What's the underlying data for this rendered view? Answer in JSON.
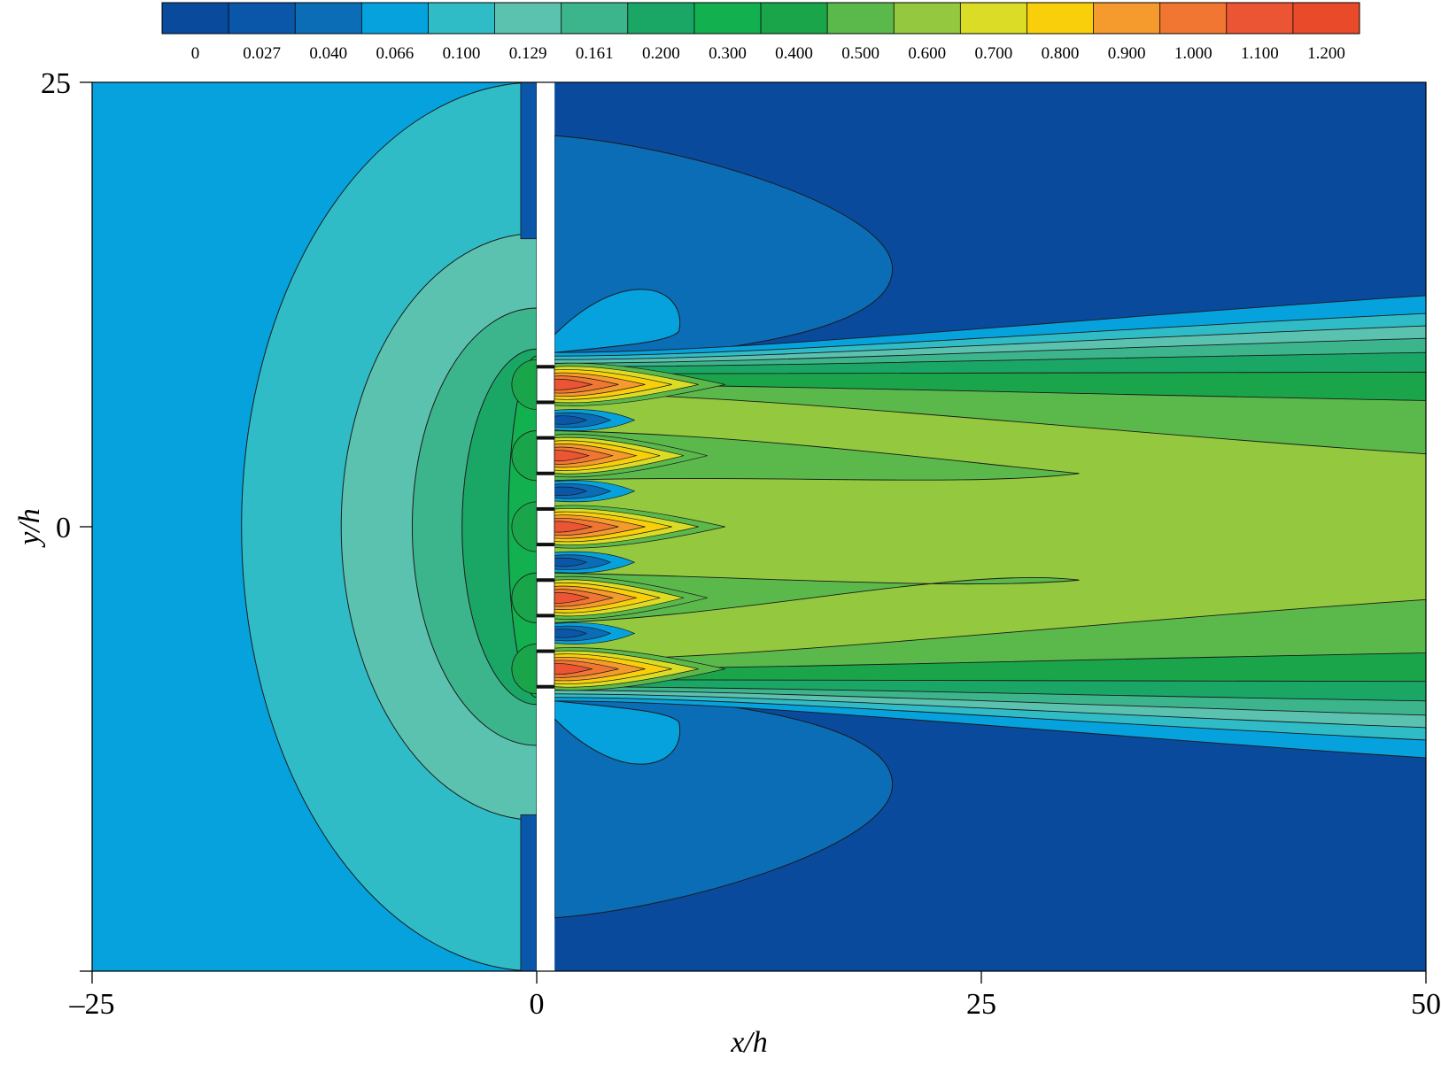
{
  "chart_data": {
    "type": "heatmap",
    "title": "",
    "xlabel": "x/h",
    "ylabel": "y/h",
    "xlim": [
      -25,
      50
    ],
    "ylim": [
      -25,
      25
    ],
    "xticks": [
      {
        "value": -25,
        "label": "–25"
      },
      {
        "value": 0,
        "label": "0"
      },
      {
        "value": 25,
        "label": "25"
      },
      {
        "value": 50,
        "label": "50"
      }
    ],
    "yticks": [
      {
        "value": 25,
        "label": "25"
      },
      {
        "value": 0,
        "label": "0"
      }
    ],
    "legend": "colorbar, top",
    "colorbar": {
      "levels": [
        "0",
        "0.027",
        "0.040",
        "0.066",
        "0.100",
        "0.129",
        "0.161",
        "0.200",
        "0.300",
        "0.400",
        "0.500",
        "0.600",
        "0.700",
        "0.800",
        "0.900",
        "1.000",
        "1.100",
        "1.200"
      ],
      "colors": [
        "#0a4a9c",
        "#0a56a8",
        "#0b6db6",
        "#06a2dd",
        "#2fbcc7",
        "#5cc2b0",
        "#3db58c",
        "#1aa765",
        "#12b04e",
        "#1ba54a",
        "#5bb94b",
        "#94c83e",
        "#dadc25",
        "#f9cf0c",
        "#f59a2c",
        "#f17632",
        "#ec5534",
        "#e84a2a"
      ]
    },
    "wall": {
      "x": 0,
      "thickness": 1
    },
    "jets": {
      "count": 5,
      "center_y": [
        -8,
        -4,
        0,
        4,
        8
      ],
      "opening": 2
    },
    "far_field_levels": {
      "upstream": "0.066",
      "downstream": "0"
    }
  }
}
